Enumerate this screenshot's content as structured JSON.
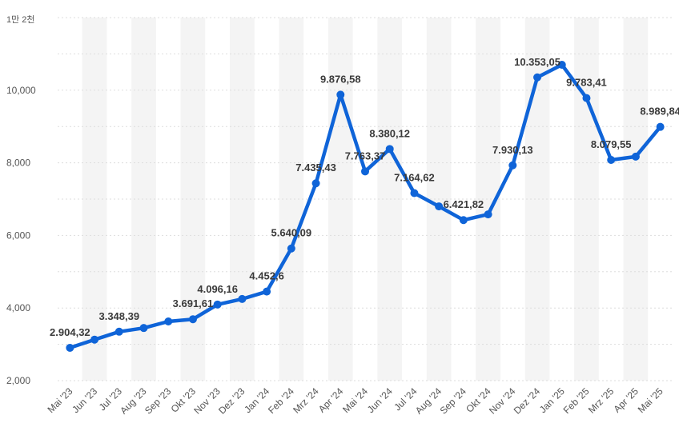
{
  "chart_data": {
    "type": "line",
    "unit_label": "1만 2천",
    "categories": [
      "Mai '23",
      "Jun '23",
      "Jul '23",
      "Aug '23",
      "Sep '23",
      "Okt '23",
      "Nov '23",
      "Dez '23",
      "Jan '24",
      "Feb '24",
      "Mrz '24",
      "Apr '24",
      "Mai '24",
      "Jun '24",
      "Jul '24",
      "Aug '24",
      "Sep '24",
      "Okt '24",
      "Nov '24",
      "Dez '24",
      "Jan '25",
      "Feb '25",
      "Mrz '25",
      "Apr '25",
      "Mai '25"
    ],
    "values": [
      2904.32,
      3130,
      3348.39,
      3450,
      3630,
      3691.61,
      4096.16,
      4250,
      4452.6,
      5640.09,
      7435.43,
      9876.58,
      7763.37,
      8380.12,
      7164.62,
      6800,
      6421.82,
      6580,
      7930.13,
      10353.05,
      10700,
      9783.41,
      8079.55,
      8170,
      8989.84
    ],
    "data_labels": [
      "2.904,32",
      "",
      "3.348,39",
      "",
      "",
      "3.691,61",
      "4.096,16",
      "",
      "4.452,6",
      "5.640,09",
      "7.435,43",
      "9.876,58",
      "7.763,37",
      "8.380,12",
      "7.164,62",
      "",
      "6.421,82",
      "",
      "7.930,13",
      "10.353,05",
      "",
      "9.783,41",
      "8.079,55",
      "",
      "8.989,84"
    ],
    "y_ticks": [
      "2,000",
      "4,000",
      "6,000",
      "8,000",
      "10,000"
    ],
    "ylim": [
      2000,
      12000
    ],
    "grid": true,
    "line_color": "#0f64d8",
    "band_color": "#f4f4f4",
    "grid_color": "#dddddd"
  }
}
